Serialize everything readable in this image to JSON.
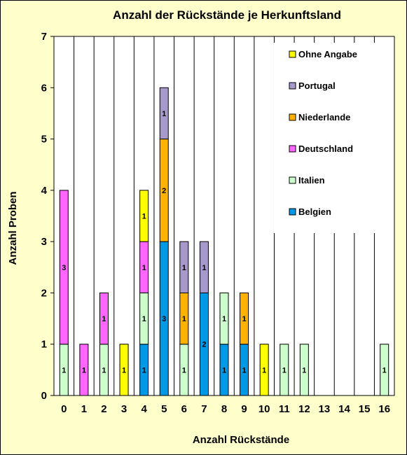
{
  "chart_data": {
    "type": "bar",
    "stacked": true,
    "title": "Anzahl der Rückstände je Herkunftsland",
    "xlabel": "Anzahl Rückstände",
    "ylabel": "Anzahl Proben",
    "categories": [
      "0",
      "1",
      "2",
      "3",
      "4",
      "5",
      "6",
      "7",
      "8",
      "9",
      "10",
      "11",
      "12",
      "13",
      "14",
      "15",
      "16"
    ],
    "ylim": [
      0,
      7
    ],
    "yticks": [
      "0",
      "1",
      "2",
      "3",
      "4",
      "5",
      "6",
      "7"
    ],
    "grid": "vertical",
    "legend_placement": "top-right",
    "series": [
      {
        "name": "Belgien",
        "color": "#0099e6",
        "values": [
          0,
          0,
          0,
          0,
          1,
          3,
          0,
          2,
          1,
          1,
          0,
          0,
          0,
          0,
          0,
          0,
          0
        ]
      },
      {
        "name": "Italien",
        "color": "#ccffcc",
        "values": [
          1,
          0,
          1,
          0,
          1,
          0,
          1,
          0,
          1,
          0,
          0,
          1,
          1,
          0,
          0,
          0,
          1
        ]
      },
      {
        "name": "Deutschland",
        "color": "#ff66ff",
        "values": [
          3,
          1,
          1,
          0,
          1,
          0,
          0,
          0,
          0,
          0,
          0,
          0,
          0,
          0,
          0,
          0,
          0
        ]
      },
      {
        "name": "Niederlande",
        "color": "#ffb300",
        "values": [
          0,
          0,
          0,
          0,
          0,
          2,
          1,
          0,
          0,
          1,
          0,
          0,
          0,
          0,
          0,
          0,
          0
        ]
      },
      {
        "name": "Portugal",
        "color": "#a899cc",
        "values": [
          0,
          0,
          0,
          0,
          0,
          1,
          1,
          1,
          0,
          0,
          0,
          0,
          0,
          0,
          0,
          0,
          0
        ]
      },
      {
        "name": "Ohne Angabe",
        "color": "#ffff00",
        "values": [
          0,
          0,
          0,
          1,
          1,
          0,
          0,
          0,
          0,
          0,
          1,
          0,
          0,
          0,
          0,
          0,
          0
        ]
      }
    ],
    "legend_order": [
      "Ohne Angabe",
      "Portugal",
      "Niederlande",
      "Deutschland",
      "Italien",
      "Belgien"
    ]
  }
}
